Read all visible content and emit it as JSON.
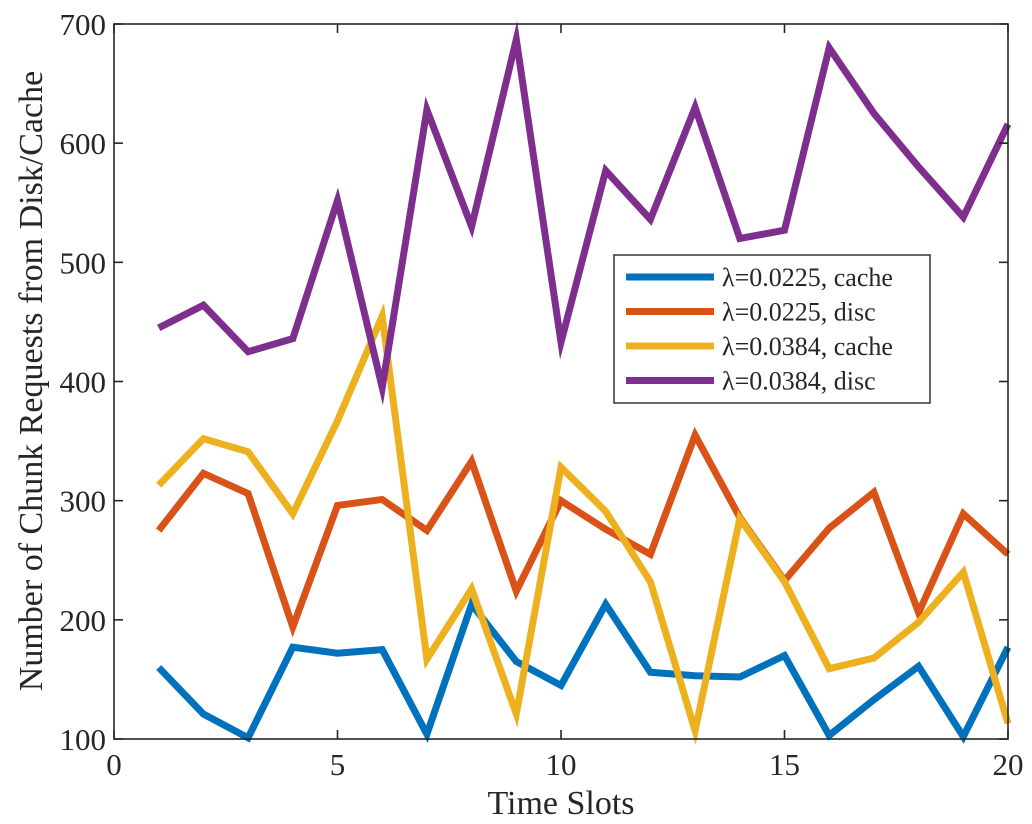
{
  "chart_data": {
    "type": "line",
    "title": "",
    "xlabel": "Time Slots",
    "ylabel": "Number of Chunk Requests from Disk/Cache",
    "xlim": [
      0,
      20
    ],
    "ylim": [
      100,
      700
    ],
    "xticks": [
      0,
      5,
      10,
      15,
      20
    ],
    "yticks": [
      100,
      200,
      300,
      400,
      500,
      600,
      700
    ],
    "xtick_labels": [
      "0",
      "5",
      "10",
      "15",
      "20"
    ],
    "ytick_labels": [
      "100",
      "200",
      "300",
      "400",
      "500",
      "600",
      "700"
    ],
    "grid": false,
    "legend_position": "middle-right",
    "x": [
      1,
      2,
      3,
      4,
      5,
      6,
      7,
      8,
      9,
      10,
      11,
      12,
      13,
      14,
      15,
      16,
      17,
      18,
      19,
      20
    ],
    "series": [
      {
        "name": "λ=0.0225, cache",
        "color": "#0072BD",
        "values": [
          160,
          121,
          101,
          177,
          172,
          175,
          104,
          213,
          165,
          145,
          213,
          156,
          153,
          152,
          170,
          103,
          133,
          161,
          102,
          177
        ]
      },
      {
        "name": "λ=0.0225, disc",
        "color": "#D95319",
        "values": [
          275,
          323,
          306,
          194,
          296,
          301,
          275,
          333,
          224,
          300,
          276,
          255,
          355,
          286,
          233,
          277,
          307,
          206,
          289,
          255
        ]
      },
      {
        "name": "λ=0.0384, cache",
        "color": "#EDB120",
        "values": [
          313,
          352,
          341,
          289,
          367,
          455,
          167,
          226,
          121,
          328,
          291,
          232,
          107,
          285,
          232,
          159,
          168,
          198,
          240,
          113
        ]
      },
      {
        "name": "λ=0.0384, disc",
        "color": "#7E2F8E",
        "values": [
          445,
          464,
          425,
          436,
          552,
          395,
          628,
          530,
          687,
          433,
          577,
          536,
          630,
          520,
          527,
          680,
          625,
          580,
          538,
          616
        ]
      }
    ]
  }
}
